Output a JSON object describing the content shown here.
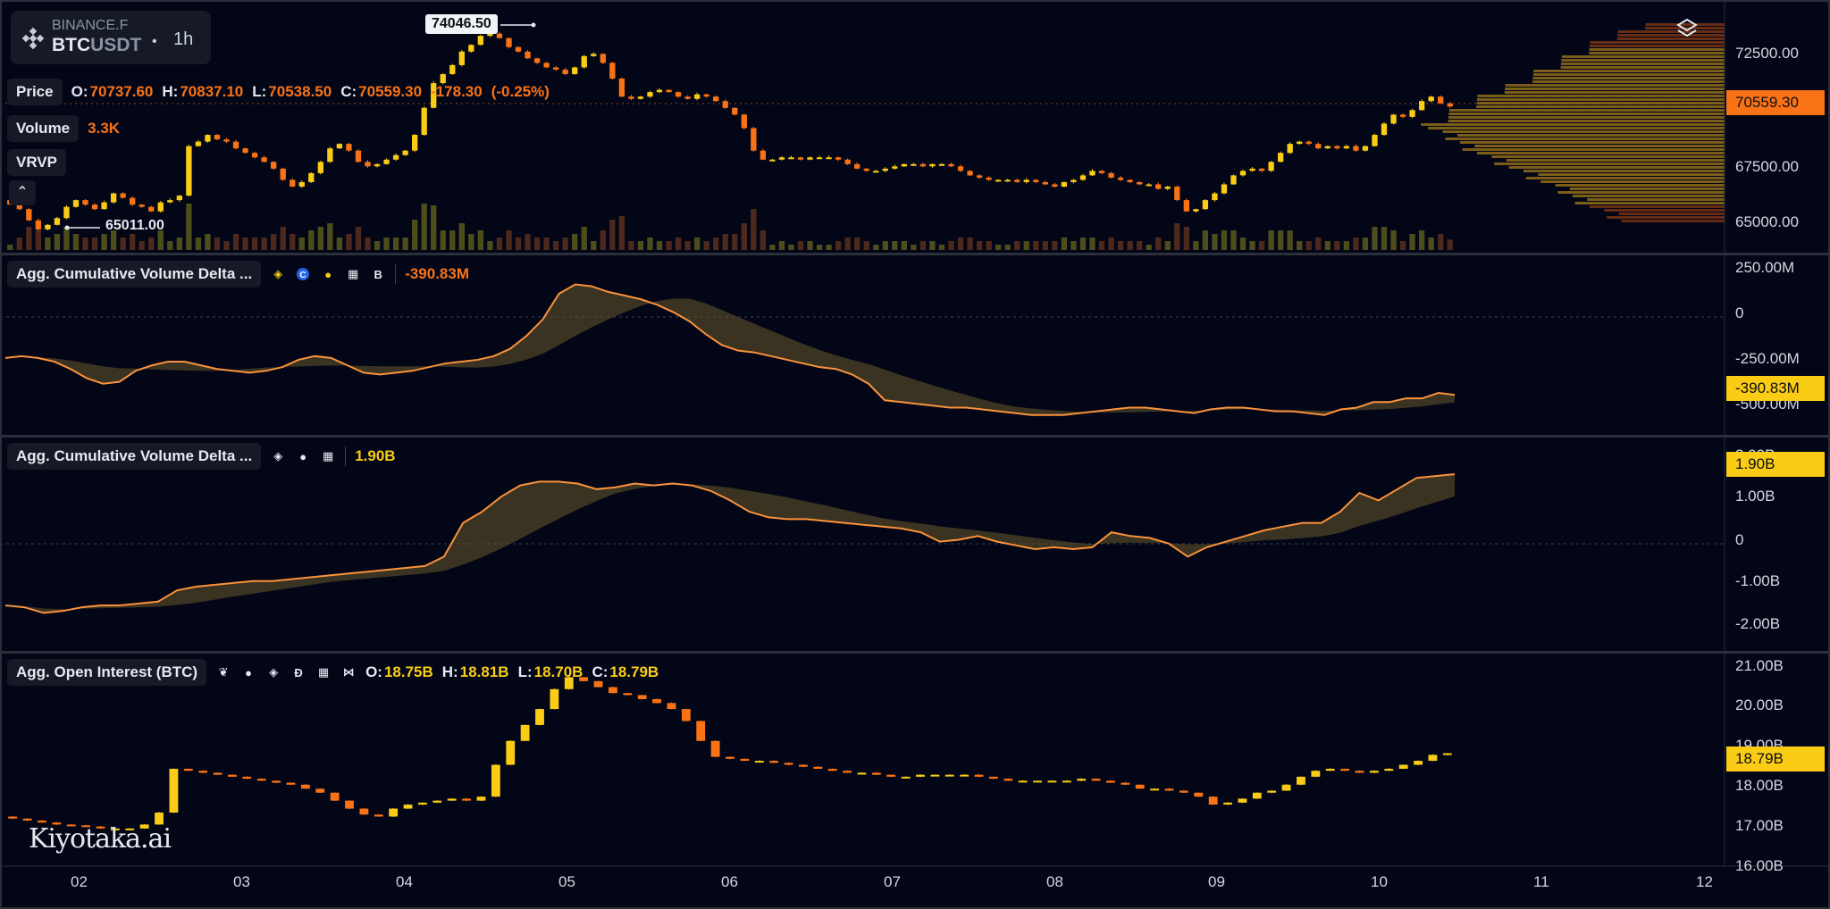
{
  "symbol": {
    "exchange": "BINANCE.F",
    "base": "BTC",
    "quote": "USDT",
    "separator": "•",
    "timeframe": "1h",
    "icon": "binance-icon"
  },
  "price_panel": {
    "label": "Price",
    "o_label": "O:",
    "o": "70737.60",
    "h_label": "H:",
    "h": "70837.10",
    "l_label": "L:",
    "l": "70538.50",
    "c_label": "C:",
    "c": "70559.30",
    "change": "-178.30",
    "change_pct": "(-0.25%)",
    "volume_label": "Volume",
    "volume": "3.3K",
    "vrvp_label": "VRVP",
    "high_marker": "74046.50",
    "low_marker": "65011.00",
    "last_tag": "70559.30",
    "axis": [
      "72500.00",
      "67500.00",
      "65000.00"
    ]
  },
  "cvd1": {
    "label": "Agg. Cumulative Volume Delta ...",
    "value": "-390.83M",
    "tag": "-390.83M",
    "axis": [
      "250.00M",
      "0",
      "-250.00M",
      "-500.00M"
    ],
    "icons": [
      "binance-icon",
      "coinbase-icon",
      "bitmex-icon",
      "okx-icon",
      "bybit-icon"
    ]
  },
  "cvd2": {
    "label": "Agg. Cumulative Volume Delta ...",
    "value": "1.90B",
    "tag": "1.90B",
    "axis": [
      "2.00B",
      "1.00B",
      "0",
      "-1.00B",
      "-2.00B"
    ],
    "icons": [
      "binance-icon",
      "bitmex-icon",
      "okx-icon"
    ]
  },
  "oi": {
    "label": "Agg. Open Interest (BTC)",
    "o_label": "O:",
    "o": "18.75B",
    "h_label": "H:",
    "h": "18.81B",
    "l_label": "L:",
    "l": "18.70B",
    "c_label": "C:",
    "c": "18.79B",
    "tag": "18.79B",
    "axis": [
      "21.00B",
      "20.00B",
      "19.00B",
      "18.00B",
      "17.00B",
      "16.00B"
    ],
    "icons": [
      "leaf-icon",
      "bitmex-icon",
      "binance-icon",
      "deribit-icon",
      "okx-icon",
      "bow-icon"
    ]
  },
  "x_axis": [
    "02",
    "03",
    "04",
    "05",
    "06",
    "07",
    "08",
    "09",
    "10",
    "11",
    "12"
  ],
  "watermark": "Kiyotaka.ai",
  "colors": {
    "background": "#020617",
    "up": "#facc15",
    "down": "#f97316",
    "tag_orange": "#f97316",
    "tag_yellow": "#facc15"
  },
  "chart_data": [
    {
      "type": "candlestick",
      "title": "Price",
      "ylim": [
        64500,
        74500
      ],
      "close": [
        66200,
        66000,
        65500,
        65100,
        65300,
        65600,
        66100,
        66400,
        66200,
        66000,
        66300,
        66700,
        66500,
        66200,
        66100,
        65900,
        66300,
        66400,
        66600,
        68800,
        69000,
        69300,
        69100,
        69000,
        68700,
        68500,
        68300,
        68100,
        67800,
        67300,
        67000,
        67200,
        67600,
        68100,
        68700,
        68900,
        68600,
        68100,
        67900,
        68000,
        68200,
        68400,
        68600,
        69300,
        70500,
        71600,
        72000,
        72400,
        73000,
        73300,
        73700,
        73800,
        73600,
        73200,
        73000,
        72700,
        72500,
        72300,
        72200,
        72000,
        72300,
        72800,
        72900,
        72500,
        71800,
        71000,
        70900,
        71000,
        71200,
        71300,
        71200,
        71000,
        70900,
        71100,
        71000,
        70800,
        70500,
        70200,
        69600,
        68600,
        68200,
        68200,
        68300,
        68300,
        68200,
        68300,
        68300,
        68300,
        68200,
        68000,
        67800,
        67700,
        67700,
        67800,
        67900,
        68000,
        68000,
        67900,
        68000,
        68000,
        67900,
        67700,
        67500,
        67400,
        67300,
        67300,
        67300,
        67200,
        67300,
        67200,
        67100,
        67000,
        67200,
        67300,
        67500,
        67700,
        67600,
        67400,
        67300,
        67200,
        67100,
        67100,
        66900,
        67000,
        66400,
        65900,
        66000,
        66400,
        66700,
        67100,
        67500,
        67700,
        67800,
        67700,
        68100,
        68500,
        68900,
        69000,
        68900,
        68700,
        68800,
        68700,
        68800,
        68600,
        68800,
        69300,
        69800,
        70200,
        70100,
        70400,
        70800,
        71000,
        70700,
        70559.3
      ]
    },
    {
      "type": "area",
      "title": "Agg. Cumulative Volume Delta ...",
      "ylim": [
        -550,
        300
      ],
      "series": [
        {
          "values": [
            -190,
            -180,
            -190,
            -210,
            -250,
            -300,
            -330,
            -320,
            -260,
            -230,
            -210,
            -210,
            -230,
            -250,
            -260,
            -270,
            -260,
            -240,
            -200,
            -180,
            -190,
            -230,
            -270,
            -280,
            -270,
            -260,
            -240,
            -220,
            -210,
            -200,
            -180,
            -140,
            -70,
            20,
            160,
            210,
            200,
            170,
            150,
            130,
            100,
            60,
            10,
            -60,
            -120,
            -150,
            -160,
            -180,
            -200,
            -220,
            -240,
            -250,
            -280,
            -330,
            -420,
            -430,
            -440,
            -450,
            -460,
            -460,
            -470,
            -480,
            -490,
            -500,
            -500,
            -500,
            -490,
            -480,
            -470,
            -460,
            -460,
            -470,
            -480,
            -490,
            -470,
            -460,
            -460,
            -470,
            -480,
            -480,
            -490,
            -500,
            -470,
            -460,
            -430,
            -430,
            -410,
            -410,
            -380,
            -390.83
          ]
        }
      ]
    },
    {
      "type": "area",
      "title": "Agg. Cumulative Volume Delta ...",
      "ylim": [
        -2600,
        2400
      ],
      "series": [
        {
          "values": [
            -1600,
            -1650,
            -1800,
            -1750,
            -1650,
            -1600,
            -1600,
            -1550,
            -1500,
            -1200,
            -1100,
            -1050,
            -1000,
            -950,
            -950,
            -900,
            -850,
            -800,
            -750,
            -700,
            -650,
            -600,
            -550,
            -300,
            600,
            900,
            1300,
            1600,
            1700,
            1700,
            1650,
            1500,
            1550,
            1650,
            1600,
            1650,
            1600,
            1450,
            1200,
            900,
            750,
            700,
            700,
            650,
            600,
            550,
            500,
            450,
            350,
            100,
            150,
            250,
            100,
            0,
            -100,
            -50,
            -100,
            -50,
            350,
            250,
            200,
            50,
            -300,
            -50,
            100,
            250,
            400,
            500,
            600,
            600,
            900,
            1400,
            1200,
            1500,
            1800,
            1850,
            1900
          ]
        }
      ]
    },
    {
      "type": "candlestick",
      "title": "Agg. Open Interest (BTC)",
      "ylim": [
        16000,
        21000
      ],
      "close": [
        17150,
        17100,
        17050,
        17000,
        16980,
        16950,
        16900,
        16900,
        16900,
        17000,
        17300,
        18400,
        18350,
        18300,
        18250,
        18200,
        18150,
        18100,
        18050,
        18000,
        17900,
        17800,
        17600,
        17400,
        17250,
        17200,
        17400,
        17500,
        17550,
        17600,
        17650,
        17600,
        17700,
        18500,
        19100,
        19500,
        19900,
        20400,
        20700,
        20600,
        20450,
        20300,
        20250,
        20150,
        20050,
        19900,
        19600,
        19100,
        18700,
        18650,
        18600,
        18600,
        18550,
        18500,
        18450,
        18400,
        18350,
        18300,
        18300,
        18250,
        18200,
        18200,
        18250,
        18250,
        18250,
        18250,
        18200,
        18150,
        18100,
        18100,
        18100,
        18100,
        18100,
        18150,
        18100,
        18050,
        18000,
        17900,
        17900,
        17850,
        17800,
        17700,
        17500,
        17550,
        17650,
        17800,
        17850,
        18000,
        18200,
        18350,
        18400,
        18350,
        18300,
        18350,
        18400,
        18500,
        18600,
        18750,
        18790
      ]
    }
  ]
}
